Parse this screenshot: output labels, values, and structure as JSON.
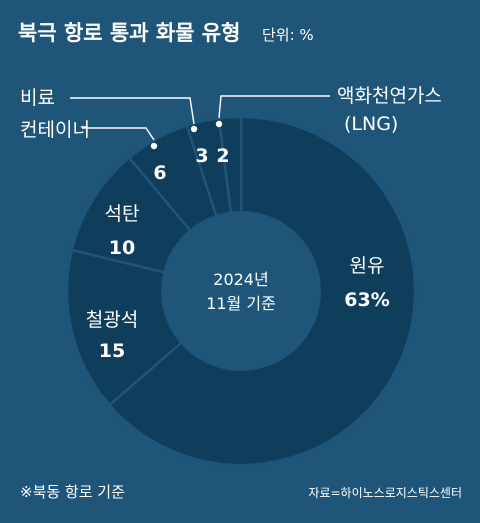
{
  "header": {
    "title": "북극 항로 통과 화물 유형",
    "unit": "단위: %"
  },
  "chart_data": {
    "type": "pie",
    "title": "북극 항로 통과 화물 유형",
    "unit": "%",
    "center_label": [
      "2024년",
      "11월 기준"
    ],
    "slices": [
      {
        "name": "원유",
        "value": 63
      },
      {
        "name": "철광석",
        "value": 15
      },
      {
        "name": "석탄",
        "value": 10
      },
      {
        "name": "컨테이너",
        "value": 6
      },
      {
        "name": "비료",
        "value": 3
      },
      {
        "name": "액화천연가스 (LNG)",
        "value": 2
      }
    ]
  },
  "labels": {
    "oil": {
      "name": "원유",
      "value": "63%"
    },
    "iron": {
      "name": "철광석",
      "value": "15"
    },
    "coal": {
      "name": "석탄",
      "value": "10"
    },
    "container": {
      "name": "컨테이너",
      "value": "6"
    },
    "fertilizer": {
      "name": "비료",
      "value": "3"
    },
    "lng": {
      "name_line1": "액화천연가스",
      "name_line2": "(LNG)",
      "value": "2"
    }
  },
  "center": {
    "line1": "2024년",
    "line2": "11월 기준"
  },
  "footer": {
    "note": "※북동 항로 기준",
    "source": "자료=하이노스로지스틱스센터"
  },
  "colors": {
    "background": "#1e5578",
    "slice": "#0f3d5c",
    "separator": "#1e5578",
    "hole": "#1e5578",
    "text": "#ffffff"
  }
}
